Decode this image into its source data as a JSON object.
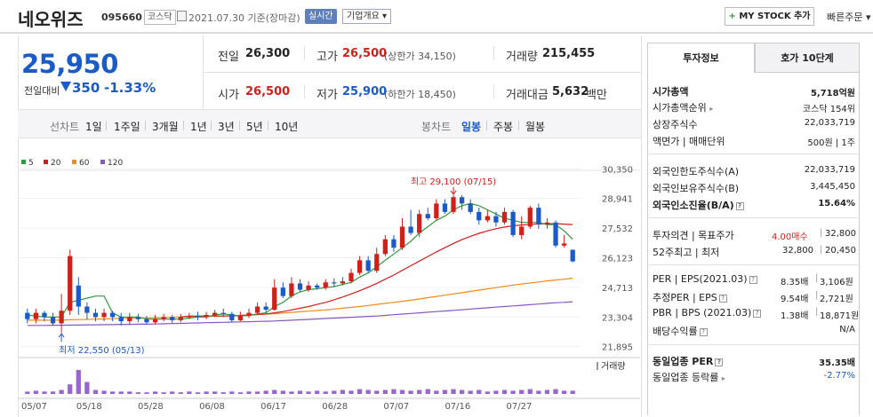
{
  "header": {
    "title": "네오위즈",
    "code": "095660",
    "market": "코스닥",
    "date_info": "2021.07.30 기준(장마감)",
    "realtime_label": "실시간",
    "corp_info_label": "기업개요",
    "mystock_label": "MY STOCK 추가",
    "quick_order_label": "빠른주문"
  },
  "quote": {
    "price": "25,950",
    "change_label": "전일대비",
    "change": "350",
    "change_pct": "-1.33%",
    "prev_close_label": "전일",
    "prev_close": "26,300",
    "high_label": "고가",
    "high": "26,500",
    "upper_limit": "(상한가 34,150)",
    "volume_label": "거래량",
    "volume": "215,455",
    "open_label": "시가",
    "open": "26,500",
    "low_label": "저가",
    "low": "25,900",
    "lower_limit": "(하한가 18,450)",
    "amount_label": "거래대금",
    "amount": "5,632",
    "amount_unit": "백만"
  },
  "period_bar": {
    "left_label": "선차트",
    "left_items": [
      "1일",
      "1주일",
      "3개월",
      "1년",
      "3년",
      "5년",
      "10년"
    ],
    "right_label": "봉차트",
    "right_items": [
      "일봉",
      "주봉",
      "월봉"
    ],
    "active": "일봉"
  },
  "colors": {
    "up": "#d0201c",
    "down": "#1a5bc7",
    "ma5": "#2e9c3b",
    "ma20": "#d0201c",
    "ma60": "#f28a1e",
    "ma120": "#8a56c2",
    "volume": "#9966cc"
  },
  "chart_data": {
    "type": "candlestick",
    "legend": [
      {
        "name": "5",
        "color": "#2e9c3b"
      },
      {
        "name": "20",
        "color": "#d0201c"
      },
      {
        "name": "60",
        "color": "#f28a1e"
      },
      {
        "name": "120",
        "color": "#8a56c2"
      }
    ],
    "ylim": [
      21500,
      30700
    ],
    "y_ticks": [
      "30,350",
      "28,941",
      "27,532",
      "26,123",
      "24,713",
      "23,304",
      "21,895"
    ],
    "x_ticks": [
      "05/07",
      "05/18",
      "05/28",
      "06/08",
      "06/17",
      "06/28",
      "07/07",
      "07/16",
      "07/27"
    ],
    "high_annotation": "최고 29,100 (07/15)",
    "low_annotation": "최저 22,550 (05/13)",
    "volume_label": "거래량",
    "candles": [
      {
        "o": 23500,
        "c": 23200,
        "h": 23700,
        "l": 23000
      },
      {
        "o": 23200,
        "c": 23500,
        "h": 23700,
        "l": 23000
      },
      {
        "o": 23500,
        "c": 23300,
        "h": 23600,
        "l": 23100
      },
      {
        "o": 23300,
        "c": 23000,
        "h": 23500,
        "l": 22900
      },
      {
        "o": 23000,
        "c": 23600,
        "h": 24400,
        "l": 22550
      },
      {
        "o": 23600,
        "c": 26200,
        "h": 26500,
        "l": 23400
      },
      {
        "o": 24800,
        "c": 23800,
        "h": 25200,
        "l": 23400
      },
      {
        "o": 23800,
        "c": 23500,
        "h": 24000,
        "l": 23200
      },
      {
        "o": 23500,
        "c": 23300,
        "h": 23700,
        "l": 23100
      },
      {
        "o": 23300,
        "c": 23500,
        "h": 23700,
        "l": 23100
      },
      {
        "o": 23500,
        "c": 23300,
        "h": 23600,
        "l": 23100
      },
      {
        "o": 23300,
        "c": 23100,
        "h": 23500,
        "l": 22900
      },
      {
        "o": 23100,
        "c": 23300,
        "h": 23500,
        "l": 22950
      },
      {
        "o": 23300,
        "c": 23200,
        "h": 23450,
        "l": 23050
      },
      {
        "o": 23200,
        "c": 23050,
        "h": 23350,
        "l": 22950
      },
      {
        "o": 23050,
        "c": 23200,
        "h": 23400,
        "l": 22950
      },
      {
        "o": 23200,
        "c": 23300,
        "h": 23450,
        "l": 23100
      },
      {
        "o": 23300,
        "c": 23150,
        "h": 23400,
        "l": 23000
      },
      {
        "o": 23150,
        "c": 23300,
        "h": 23450,
        "l": 23050
      },
      {
        "o": 23300,
        "c": 23350,
        "h": 23500,
        "l": 23200
      },
      {
        "o": 23350,
        "c": 23300,
        "h": 23550,
        "l": 23150
      },
      {
        "o": 23300,
        "c": 23400,
        "h": 23550,
        "l": 23200
      },
      {
        "o": 23400,
        "c": 23500,
        "h": 23650,
        "l": 23300
      },
      {
        "o": 23500,
        "c": 23450,
        "h": 23700,
        "l": 23300
      },
      {
        "o": 23450,
        "c": 23150,
        "h": 23550,
        "l": 23050
      },
      {
        "o": 23150,
        "c": 23350,
        "h": 23550,
        "l": 23100
      },
      {
        "o": 23350,
        "c": 23500,
        "h": 23700,
        "l": 23250
      },
      {
        "o": 23500,
        "c": 23800,
        "h": 24000,
        "l": 23400
      },
      {
        "o": 23800,
        "c": 23650,
        "h": 24000,
        "l": 23500
      },
      {
        "o": 23650,
        "c": 24700,
        "h": 25100,
        "l": 23600
      },
      {
        "o": 24700,
        "c": 24300,
        "h": 24950,
        "l": 24200
      },
      {
        "o": 24300,
        "c": 24900,
        "h": 25200,
        "l": 24200
      },
      {
        "o": 24900,
        "c": 24600,
        "h": 25100,
        "l": 24500
      },
      {
        "o": 24600,
        "c": 24800,
        "h": 25000,
        "l": 24500
      },
      {
        "o": 24800,
        "c": 24700,
        "h": 24900,
        "l": 24600
      },
      {
        "o": 24700,
        "c": 24950,
        "h": 25100,
        "l": 24600
      },
      {
        "o": 24950,
        "c": 24900,
        "h": 25150,
        "l": 24750
      },
      {
        "o": 24900,
        "c": 25000,
        "h": 25200,
        "l": 24800
      },
      {
        "o": 25000,
        "c": 25400,
        "h": 25600,
        "l": 24900
      },
      {
        "o": 25400,
        "c": 26000,
        "h": 26200,
        "l": 25300
      },
      {
        "o": 26000,
        "c": 25500,
        "h": 26200,
        "l": 25400
      },
      {
        "o": 25500,
        "c": 26300,
        "h": 26600,
        "l": 25400
      },
      {
        "o": 26300,
        "c": 27000,
        "h": 27200,
        "l": 26200
      },
      {
        "o": 27000,
        "c": 26600,
        "h": 27200,
        "l": 26400
      },
      {
        "o": 26600,
        "c": 27600,
        "h": 28000,
        "l": 26500
      },
      {
        "o": 27600,
        "c": 27300,
        "h": 28400,
        "l": 27200
      },
      {
        "o": 27300,
        "c": 28200,
        "h": 28400,
        "l": 27100
      },
      {
        "o": 28200,
        "c": 28000,
        "h": 28500,
        "l": 27900
      },
      {
        "o": 28000,
        "c": 28700,
        "h": 28900,
        "l": 27900
      },
      {
        "o": 28700,
        "c": 28300,
        "h": 28900,
        "l": 28200
      },
      {
        "o": 28300,
        "c": 29000,
        "h": 29100,
        "l": 28200
      },
      {
        "o": 29000,
        "c": 28700,
        "h": 29100,
        "l": 28400
      },
      {
        "o": 28700,
        "c": 28300,
        "h": 28900,
        "l": 28200
      },
      {
        "o": 28300,
        "c": 27900,
        "h": 28500,
        "l": 27700
      },
      {
        "o": 27900,
        "c": 28100,
        "h": 28400,
        "l": 27800
      },
      {
        "o": 28100,
        "c": 27800,
        "h": 28300,
        "l": 27600
      },
      {
        "o": 27800,
        "c": 28300,
        "h": 28500,
        "l": 27700
      },
      {
        "o": 28300,
        "c": 27200,
        "h": 28400,
        "l": 27100
      },
      {
        "o": 27200,
        "c": 27600,
        "h": 28100,
        "l": 27000
      },
      {
        "o": 27600,
        "c": 28500,
        "h": 28600,
        "l": 27500
      },
      {
        "o": 28500,
        "c": 27700,
        "h": 28700,
        "l": 27500
      },
      {
        "o": 27700,
        "c": 27800,
        "h": 28000,
        "l": 27500
      },
      {
        "o": 27800,
        "c": 26700,
        "h": 27900,
        "l": 26600
      },
      {
        "o": 26700,
        "c": 26800,
        "h": 27200,
        "l": 26600
      },
      {
        "o": 26500,
        "c": 25950,
        "h": 26500,
        "l": 25900
      }
    ],
    "ma5": [
      23400,
      23350,
      23300,
      23300,
      23300,
      24000,
      24100,
      24200,
      24300,
      24300,
      23500,
      23300,
      23300,
      23300,
      23200,
      23200,
      23200,
      23200,
      23200,
      23250,
      23300,
      23300,
      23400,
      23450,
      23400,
      23350,
      23380,
      23450,
      23500,
      23800,
      24000,
      24300,
      24500,
      24600,
      24650,
      24700,
      24750,
      24850,
      24950,
      25200,
      25400,
      25700,
      26000,
      26300,
      26600,
      26900,
      27300,
      27600,
      27900,
      28100,
      28400,
      28600,
      28700,
      28600,
      28400,
      28200,
      28000,
      27900,
      27800,
      27800,
      27800,
      27700,
      27700,
      27400,
      27000
    ],
    "ma20": [
      null,
      null,
      null,
      null,
      null,
      null,
      null,
      null,
      null,
      null,
      null,
      null,
      null,
      null,
      null,
      null,
      null,
      null,
      23300,
      23350,
      23350,
      23350,
      23350,
      23350,
      23350,
      23380,
      23400,
      23420,
      23450,
      23500,
      23560,
      23640,
      23720,
      23800,
      23900,
      24000,
      24120,
      24250,
      24400,
      24550,
      24720,
      24900,
      25100,
      25300,
      25520,
      25740,
      25960,
      26180,
      26400,
      26600,
      26800,
      26980,
      27140,
      27280,
      27400,
      27500,
      27580,
      27640,
      27680,
      27710,
      27730,
      27740,
      27740,
      27720,
      27700
    ],
    "ma60": [
      23150,
      23150,
      23150,
      23150,
      23150,
      23170,
      23180,
      23190,
      23200,
      23210,
      23220,
      23230,
      23240,
      23250,
      23260,
      23270,
      23280,
      23290,
      23300,
      23310,
      23320,
      23330,
      23340,
      23350,
      23360,
      23380,
      23400,
      23420,
      23440,
      23460,
      23490,
      23520,
      23550,
      23580,
      23610,
      23640,
      23680,
      23720,
      23760,
      23800,
      23850,
      23900,
      23950,
      24000,
      24050,
      24100,
      24160,
      24220,
      24280,
      24340,
      24400,
      24460,
      24520,
      24580,
      24640,
      24700,
      24760,
      24820,
      24870,
      24920,
      24970,
      25020,
      25060,
      25100,
      25150
    ],
    "ma120": [
      22900,
      22900,
      22900,
      22910,
      22910,
      22920,
      22920,
      22930,
      22930,
      22940,
      22940,
      22950,
      22950,
      22960,
      22960,
      22970,
      22980,
      22990,
      23000,
      23010,
      23020,
      23030,
      23040,
      23050,
      23060,
      23070,
      23080,
      23090,
      23100,
      23110,
      23130,
      23150,
      23170,
      23190,
      23210,
      23230,
      23250,
      23270,
      23290,
      23310,
      23330,
      23350,
      23380,
      23410,
      23440,
      23470,
      23500,
      23530,
      23560,
      23590,
      23620,
      23650,
      23680,
      23710,
      23740,
      23770,
      23800,
      23830,
      23860,
      23890,
      23920,
      23950,
      23980,
      24000,
      24030
    ],
    "volumes": [
      3,
      4,
      3,
      3,
      5,
      12,
      30,
      15,
      5,
      4,
      3,
      3,
      3,
      2,
      2,
      3,
      2,
      3,
      2,
      3,
      2,
      3,
      3,
      2,
      3,
      2,
      3,
      3,
      4,
      5,
      4,
      3,
      4,
      3,
      4,
      3,
      4,
      5,
      4,
      6,
      5,
      4,
      5,
      6,
      5,
      4,
      5,
      6,
      4,
      5,
      6,
      5,
      4,
      5,
      3,
      4,
      5,
      4,
      5,
      6,
      4,
      5,
      6,
      4,
      4
    ]
  },
  "right_panel": {
    "tabs": [
      "투자정보",
      "호가 10단계"
    ],
    "market_cap_label": "시가총액",
    "market_cap": "5,718억원",
    "rank_label": "시가총액순위",
    "rank": "코스닥 154위",
    "shares_label": "상장주식수",
    "shares": "22,033,719",
    "par_label": "액면가 | 매매단위",
    "par": "500원 | 1주",
    "foreign_limit_label": "외국인한도주식수(A)",
    "foreign_limit": "22,033,719",
    "foreign_hold_label": "외국인보유주식수(B)",
    "foreign_hold": "3,445,450",
    "foreign_ratio_label": "외국인소진율(B/A)",
    "foreign_ratio": "15.64%",
    "opinion_label": "투자의견 | 목표주가",
    "opinion": "4.00매수",
    "target": "32,800",
    "wk52_label": "52주최고 | 최저",
    "wk52_high": "32,800",
    "wk52_low": "20,450",
    "per_label": "PER | EPS(2021.03)",
    "per": "8.35배",
    "eps": "3,106원",
    "est_per_label": "추정PER | EPS",
    "est_per": "9.54배",
    "est_eps": "2,721원",
    "pbr_label": "PBR | BPS (2021.03)",
    "pbr": "1.38배",
    "bps": "18,871원",
    "div_label": "배당수익률",
    "div": "N/A",
    "sector_per_label": "동일업종 PER",
    "sector_per": "35.35배",
    "sector_chg_label": "동일업종 등락률",
    "sector_chg": "-2.77%"
  }
}
